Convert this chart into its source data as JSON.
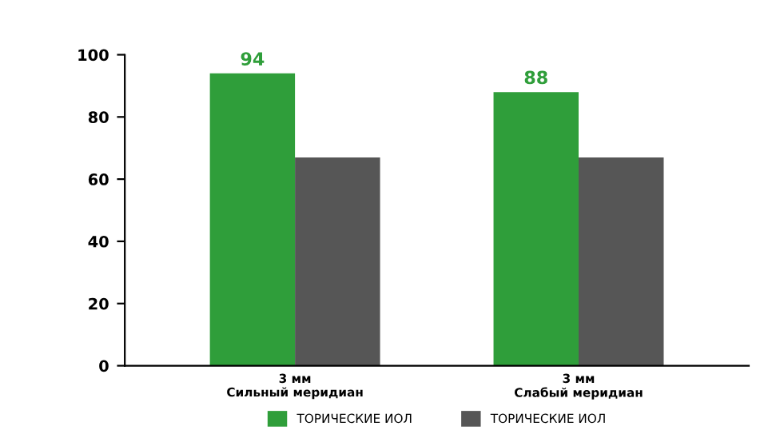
{
  "chart_data": {
    "type": "bar",
    "categories": [
      "3 мм\nСильный меридиан",
      "3 мм\nСлабый меридиан"
    ],
    "series": [
      {
        "name": "ТОРИЧЕСКИЕ ИОЛ",
        "color": "#2f9e3a",
        "values": [
          94,
          88
        ],
        "value_labels": [
          "94",
          "88"
        ]
      },
      {
        "name": "ТОРИЧЕСКИЕ ИОЛ",
        "color": "#565656",
        "values": [
          67,
          67
        ],
        "value_labels": [
          null,
          null
        ]
      }
    ],
    "ylim": [
      0,
      100
    ],
    "yticks": [
      0,
      20,
      40,
      60,
      80,
      100
    ],
    "grid": false,
    "legend": "bottom"
  }
}
